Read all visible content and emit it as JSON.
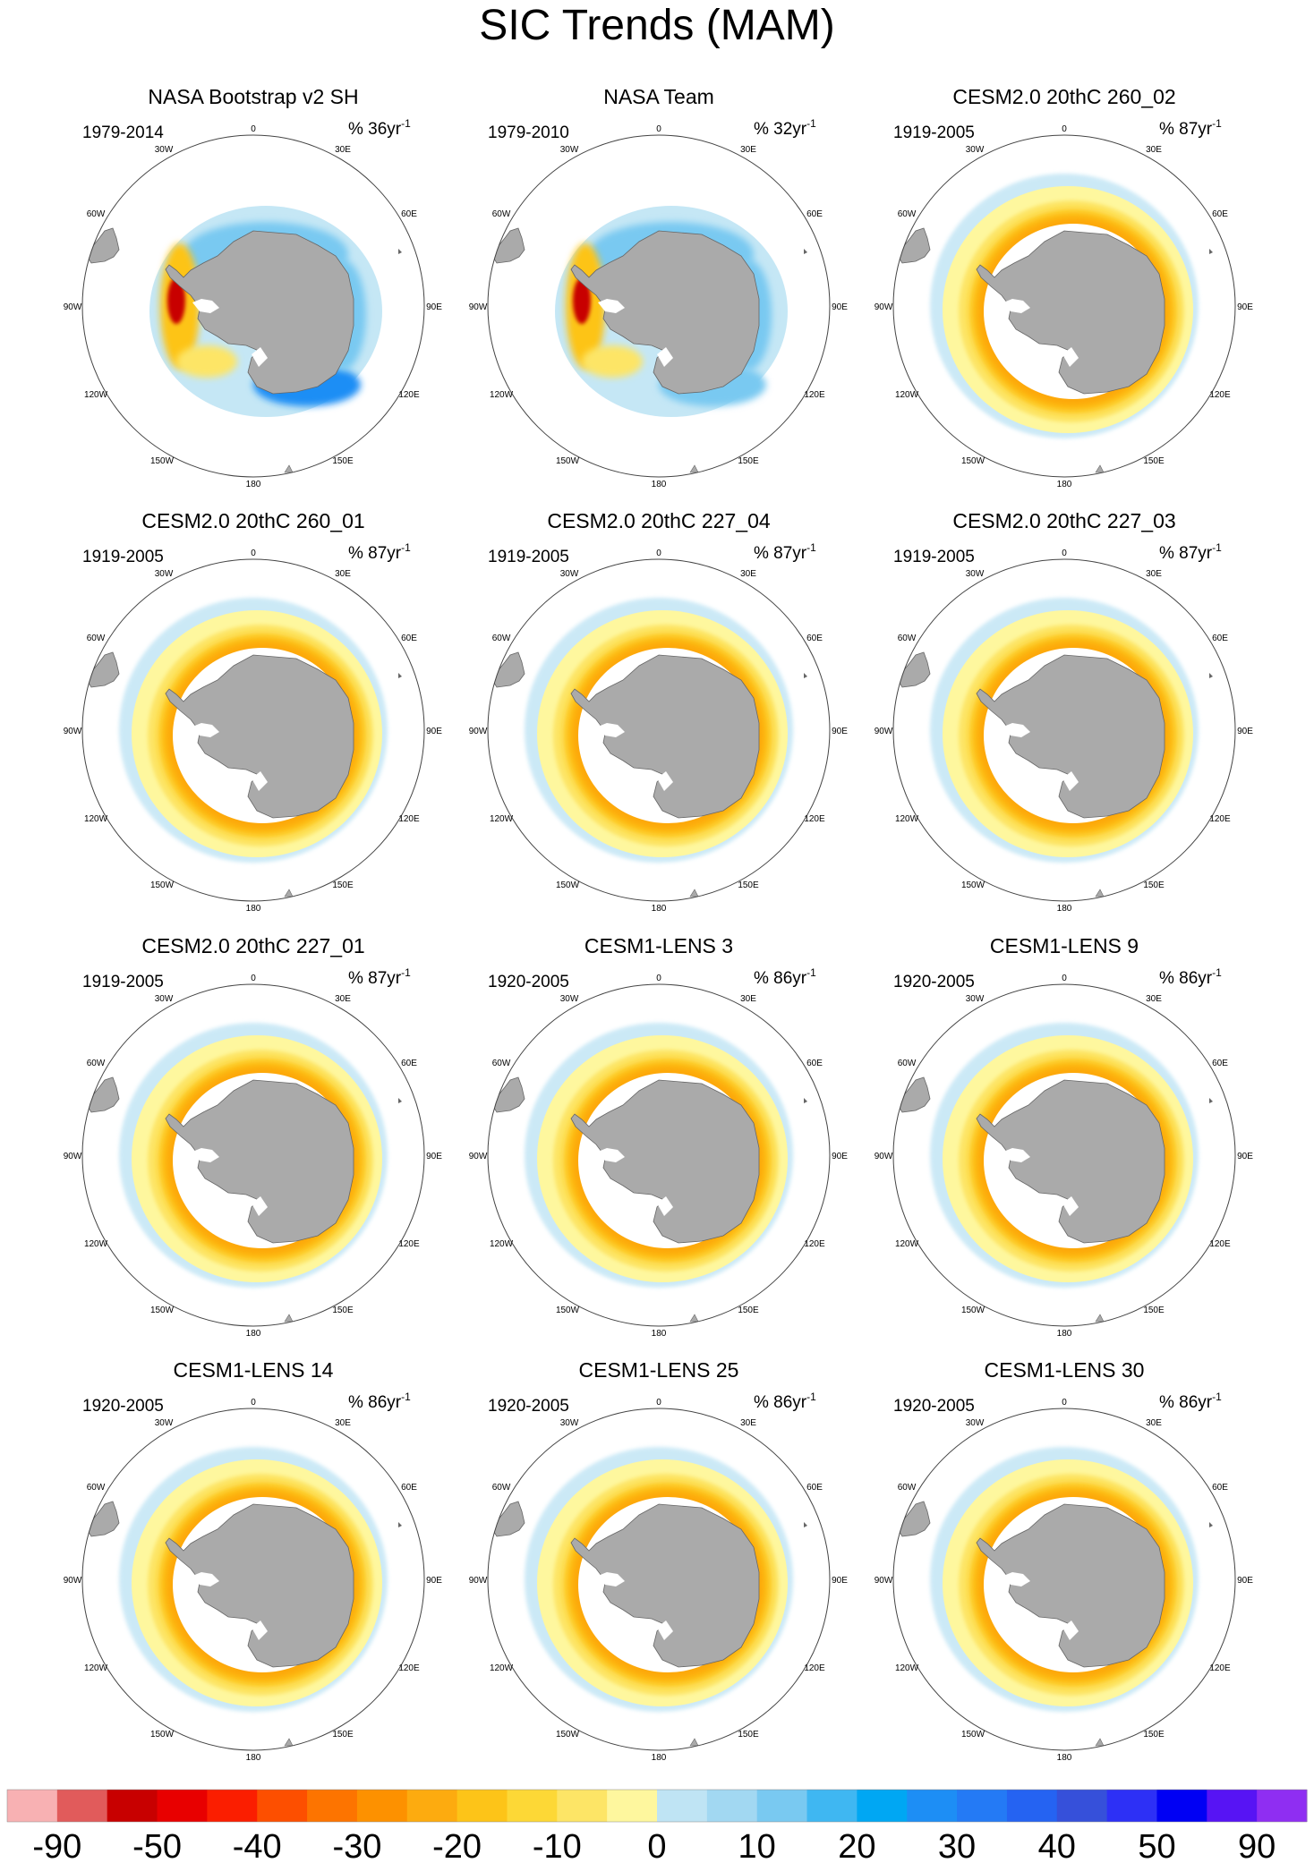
{
  "figure": {
    "title": "SIC Trends (MAM)"
  },
  "chart_data": {
    "type": "heatmap",
    "projection": "south-polar-stereographic",
    "longitude_labels": [
      "0",
      "30E",
      "60E",
      "90E",
      "120E",
      "150E",
      "180",
      "150W",
      "120W",
      "90W",
      "60W",
      "30W"
    ],
    "panels": [
      {
        "title": "NASA Bootstrap v2 SH",
        "period": "1979-2014",
        "ratio": "% 36yr",
        "exponent": "-1",
        "pattern": "obs1"
      },
      {
        "title": "NASA Team",
        "period": "1979-2010",
        "ratio": "% 32yr",
        "exponent": "-1",
        "pattern": "obs2"
      },
      {
        "title": "CESM2.0 20thC 260_02",
        "period": "1919-2005",
        "ratio": "% 87yr",
        "exponent": "-1",
        "pattern": "model"
      },
      {
        "title": "CESM2.0 20thC 260_01",
        "period": "1919-2005",
        "ratio": "% 87yr",
        "exponent": "-1",
        "pattern": "model"
      },
      {
        "title": "CESM2.0 20thC 227_04",
        "period": "1919-2005",
        "ratio": "% 87yr",
        "exponent": "-1",
        "pattern": "model"
      },
      {
        "title": "CESM2.0 20thC 227_03",
        "period": "1919-2005",
        "ratio": "% 87yr",
        "exponent": "-1",
        "pattern": "model"
      },
      {
        "title": "CESM2.0 20thC 227_01",
        "period": "1919-2005",
        "ratio": "% 87yr",
        "exponent": "-1",
        "pattern": "model"
      },
      {
        "title": "CESM1-LENS 3",
        "period": "1920-2005",
        "ratio": "% 86yr",
        "exponent": "-1",
        "pattern": "model"
      },
      {
        "title": "CESM1-LENS 9",
        "period": "1920-2005",
        "ratio": "% 86yr",
        "exponent": "-1",
        "pattern": "model"
      },
      {
        "title": "CESM1-LENS 14",
        "period": "1920-2005",
        "ratio": "% 86yr",
        "exponent": "-1",
        "pattern": "model"
      },
      {
        "title": "CESM1-LENS 25",
        "period": "1920-2005",
        "ratio": "% 86yr",
        "exponent": "-1",
        "pattern": "model"
      },
      {
        "title": "CESM1-LENS 30",
        "period": "1920-2005",
        "ratio": "% 86yr",
        "exponent": "-1",
        "pattern": "model"
      }
    ],
    "colorbar": {
      "colors": [
        "#f8b1b3",
        "#e15b5b",
        "#c80000",
        "#e80000",
        "#fb1e00",
        "#fd4f00",
        "#fd7400",
        "#fd9100",
        "#fdab0f",
        "#fdc418",
        "#fdd836",
        "#fde566",
        "#fef79e",
        "#bfe4f4",
        "#a2d8f2",
        "#79c9f1",
        "#3fb7f2",
        "#00a7f3",
        "#1d8ef5",
        "#247af5",
        "#2563f2",
        "#3650da",
        "#2d30f6",
        "#0000f4",
        "#5714f4",
        "#8f2ef2"
      ],
      "tick_labels": [
        "-90",
        "-50",
        "-40",
        "-30",
        "-20",
        "-10",
        "0",
        "10",
        "20",
        "30",
        "40",
        "50",
        "90"
      ]
    }
  }
}
